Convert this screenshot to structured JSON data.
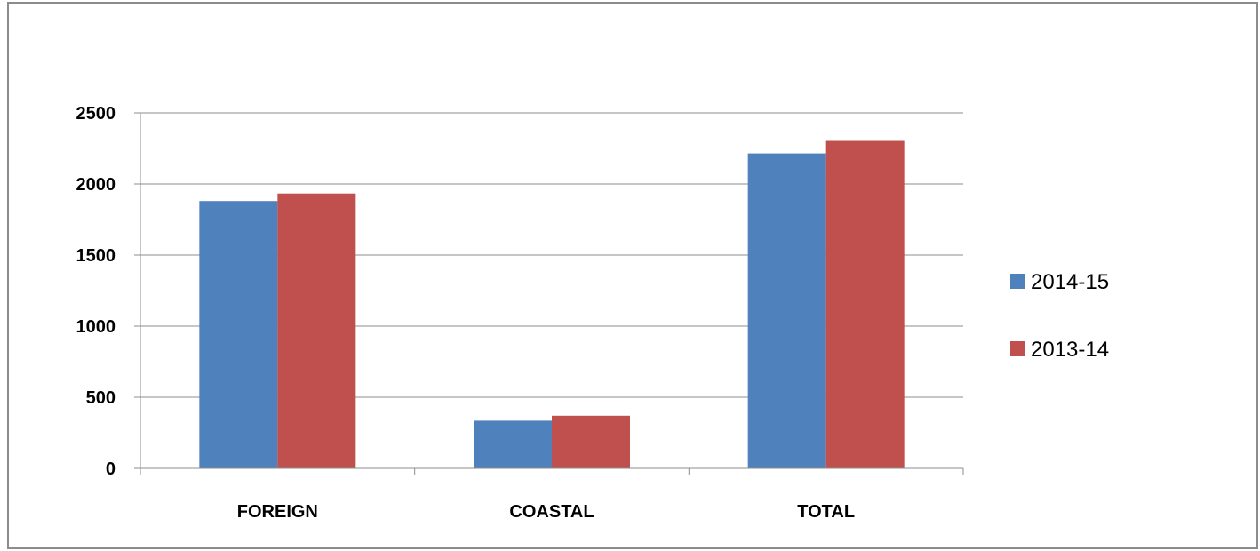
{
  "chart_data": {
    "type": "bar",
    "categories": [
      "FOREIGN",
      "COASTAL",
      "TOTAL"
    ],
    "series": [
      {
        "name": "2014-15",
        "color": "#4f81bd",
        "values": [
          1880,
          335,
          2215
        ]
      },
      {
        "name": "2013-14",
        "color": "#c0504d",
        "values": [
          1933,
          370,
          2303
        ]
      }
    ],
    "y_ticks": [
      "0",
      "500",
      "1000",
      "1500",
      "2000",
      "2500"
    ],
    "ylim": [
      0,
      2500
    ],
    "grid": true,
    "legend_position": "right"
  }
}
